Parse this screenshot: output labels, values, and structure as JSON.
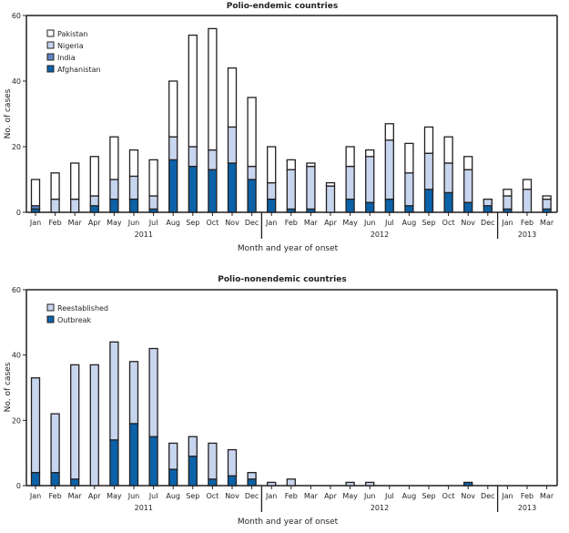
{
  "chart_data": [
    {
      "type": "bar",
      "stacked": true,
      "title": "Polio-endemic countries",
      "xlabel": "Month and year of onset",
      "ylabel": "No. of cases",
      "ylim": [
        0,
        60
      ],
      "yticks": [
        0,
        20,
        40,
        60
      ],
      "grid": false,
      "legend_position": "top-left",
      "categories": [
        "Jan",
        "Feb",
        "Mar",
        "Apr",
        "May",
        "Jun",
        "Jul",
        "Aug",
        "Sep",
        "Oct",
        "Nov",
        "Dec",
        "Jan",
        "Feb",
        "Mar",
        "Apr",
        "May",
        "Jun",
        "Jul",
        "Aug",
        "Sep",
        "Oct",
        "Nov",
        "Dec",
        "Jan",
        "Feb",
        "Mar"
      ],
      "year_groups": [
        {
          "label": "2011",
          "months": 12
        },
        {
          "label": "2012",
          "months": 12
        },
        {
          "label": "2013",
          "months": 3
        }
      ],
      "series": [
        {
          "name": "Afghanistan",
          "color": "#0b62a8",
          "values": [
            1,
            0,
            0,
            2,
            4,
            4,
            1,
            16,
            14,
            13,
            15,
            10,
            4,
            1,
            1,
            0,
            4,
            3,
            4,
            2,
            7,
            6,
            3,
            2,
            1,
            0,
            1
          ]
        },
        {
          "name": "India",
          "color": "#5b86c4",
          "values": [
            1,
            0,
            0,
            0,
            0,
            0,
            0,
            0,
            0,
            0,
            0,
            0,
            0,
            0,
            0,
            0,
            0,
            0,
            0,
            0,
            0,
            0,
            0,
            0,
            0,
            0,
            0
          ]
        },
        {
          "name": "Nigeria",
          "color": "#c7d5ee",
          "values": [
            0,
            4,
            4,
            3,
            6,
            7,
            4,
            7,
            6,
            6,
            11,
            4,
            5,
            12,
            13,
            8,
            10,
            14,
            18,
            10,
            11,
            9,
            10,
            2,
            4,
            7,
            3
          ]
        },
        {
          "name": "Pakistan",
          "color": "#ffffff",
          "values": [
            8,
            8,
            11,
            12,
            13,
            8,
            11,
            17,
            34,
            37,
            18,
            21,
            11,
            3,
            1,
            1,
            6,
            2,
            5,
            9,
            8,
            8,
            4,
            0,
            2,
            3,
            1
          ]
        }
      ]
    },
    {
      "type": "bar",
      "stacked": true,
      "title": "Polio-nonendemic countries",
      "xlabel": "Month and year of onset",
      "ylabel": "No. of cases",
      "ylim": [
        0,
        60
      ],
      "yticks": [
        0,
        20,
        40,
        60
      ],
      "grid": false,
      "legend_position": "top-left",
      "categories": [
        "Jan",
        "Feb",
        "Mar",
        "Apr",
        "May",
        "Jun",
        "Jul",
        "Aug",
        "Sep",
        "Oct",
        "Nov",
        "Dec",
        "Jan",
        "Feb",
        "Mar",
        "Apr",
        "May",
        "Jun",
        "Jul",
        "Aug",
        "Sep",
        "Oct",
        "Nov",
        "Dec",
        "Jan",
        "Feb",
        "Mar"
      ],
      "year_groups": [
        {
          "label": "2011",
          "months": 12
        },
        {
          "label": "2012",
          "months": 12
        },
        {
          "label": "2013",
          "months": 3
        }
      ],
      "series": [
        {
          "name": "Outbreak",
          "color": "#0b62a8",
          "values": [
            4,
            4,
            2,
            0,
            14,
            19,
            15,
            5,
            9,
            2,
            3,
            2,
            0,
            0,
            0,
            0,
            0,
            0,
            0,
            0,
            0,
            0,
            1,
            0,
            0,
            0,
            0
          ]
        },
        {
          "name": "Reestablished",
          "color": "#c7d5ee",
          "values": [
            29,
            18,
            35,
            37,
            30,
            19,
            27,
            8,
            6,
            11,
            8,
            2,
            1,
            2,
            0,
            0,
            1,
            1,
            0,
            0,
            0,
            0,
            0,
            0,
            0,
            0,
            0
          ]
        }
      ]
    }
  ]
}
